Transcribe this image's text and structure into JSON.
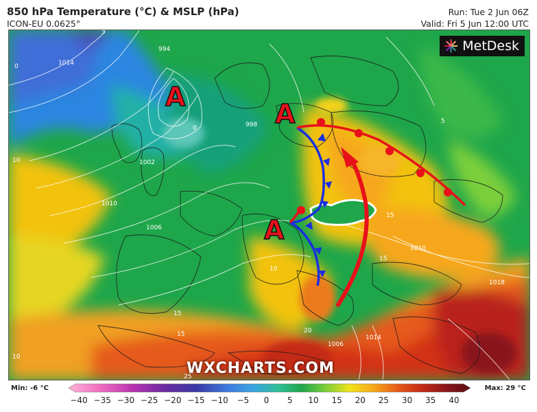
{
  "header": {
    "title": "850 hPa Temperature (°C) & MSLP (hPa)",
    "model": "ICON-EU 0.0625°",
    "run": "Run: Tue 2 Jun 06Z",
    "valid": "Valid: Fri 5 Jun 12:00 UTC"
  },
  "brand": {
    "name": "MetDesk",
    "watermark": "WXCHARTS.COM"
  },
  "annotations": {
    "high_label": "A"
  },
  "colorbar": {
    "min_label": "Min: -6 °C",
    "max_label": "Max: 29 °C",
    "ticks": [
      "−40",
      "−35",
      "−30",
      "−25",
      "−20",
      "−15",
      "−10",
      "−5",
      "0",
      "5",
      "10",
      "15",
      "20",
      "25",
      "30",
      "35",
      "40"
    ]
  },
  "isobar_labels": [
    "994",
    "1014",
    "1010",
    "1006",
    "1002",
    "998",
    "1018",
    "1010",
    "1006",
    "1014"
  ],
  "temp_labels": [
    "5",
    "0",
    "10",
    "15",
    "20",
    "25",
    "15",
    "10",
    "5",
    "0",
    "15",
    "15",
    "10"
  ],
  "colors": {
    "accent_red": "#e8111a",
    "front_blue": "#1a2ee0",
    "high_fill": "#e8111a"
  }
}
